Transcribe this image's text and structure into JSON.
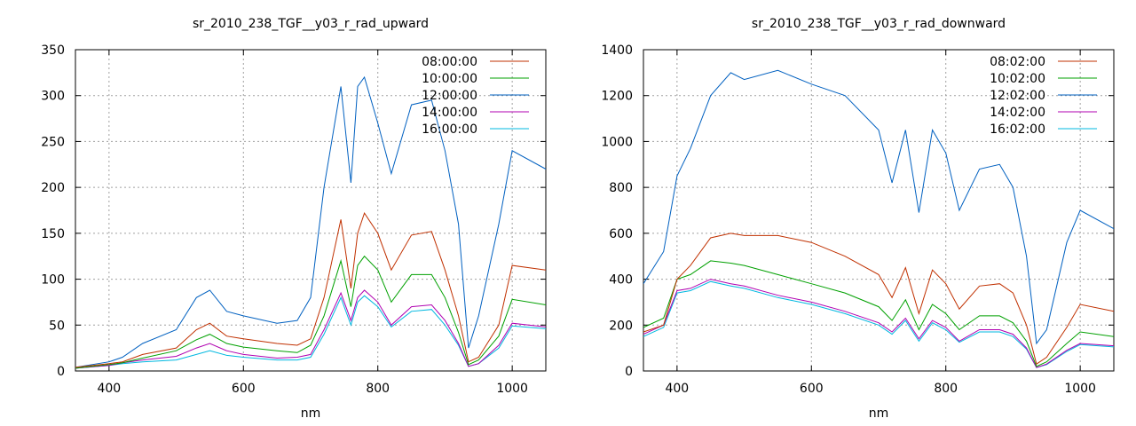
{
  "chart_data": [
    {
      "type": "line",
      "title": "sr_2010_238_TGF__y03_r_rad_upward",
      "xlabel": "nm",
      "ylabel": "",
      "xlim": [
        350,
        1050
      ],
      "ylim": [
        0,
        350
      ],
      "xticks": [
        400,
        600,
        800,
        1000
      ],
      "yticks": [
        0,
        50,
        100,
        150,
        200,
        250,
        300,
        350
      ],
      "grid": true,
      "legend_position": "top-right",
      "x": [
        350,
        400,
        420,
        450,
        500,
        530,
        550,
        575,
        600,
        650,
        680,
        700,
        720,
        745,
        760,
        770,
        780,
        800,
        820,
        850,
        880,
        900,
        920,
        935,
        950,
        980,
        1000,
        1050
      ],
      "series": [
        {
          "name": "08:00:00",
          "color": "#c03000",
          "values": [
            4,
            8,
            10,
            18,
            25,
            45,
            52,
            38,
            35,
            30,
            28,
            35,
            80,
            165,
            90,
            150,
            172,
            150,
            110,
            148,
            152,
            110,
            60,
            10,
            15,
            50,
            115,
            110
          ]
        },
        {
          "name": "10:00:00",
          "color": "#00a000",
          "values": [
            3,
            7,
            9,
            14,
            22,
            34,
            40,
            30,
            26,
            22,
            20,
            28,
            60,
            120,
            70,
            115,
            125,
            110,
            75,
            105,
            105,
            80,
            42,
            7,
            12,
            38,
            78,
            72
          ]
        },
        {
          "name": "12:00:00",
          "color": "#0060c0",
          "values": [
            4,
            10,
            15,
            30,
            45,
            80,
            88,
            65,
            60,
            52,
            55,
            80,
            200,
            310,
            205,
            310,
            320,
            270,
            215,
            290,
            295,
            240,
            160,
            25,
            60,
            160,
            240,
            220
          ]
        },
        {
          "name": "14:00:00",
          "color": "#b000b0",
          "values": [
            3,
            6,
            9,
            12,
            16,
            25,
            30,
            22,
            18,
            14,
            15,
            18,
            45,
            85,
            55,
            80,
            88,
            75,
            50,
            70,
            72,
            55,
            30,
            5,
            8,
            28,
            52,
            48
          ]
        },
        {
          "name": "16:00:00",
          "color": "#00b8e0",
          "values": [
            3,
            6,
            8,
            10,
            12,
            18,
            22,
            17,
            15,
            12,
            12,
            15,
            40,
            80,
            50,
            75,
            82,
            70,
            48,
            65,
            67,
            50,
            28,
            5,
            8,
            25,
            49,
            46
          ]
        }
      ]
    },
    {
      "type": "line",
      "title": "sr_2010_238_TGF__y03_r_rad_downward",
      "xlabel": "nm",
      "ylabel": "",
      "xlim": [
        350,
        1050
      ],
      "ylim": [
        0,
        1400
      ],
      "xticks": [
        400,
        600,
        800,
        1000
      ],
      "yticks": [
        0,
        200,
        400,
        600,
        800,
        1000,
        1200,
        1400
      ],
      "grid": true,
      "legend_position": "top-right",
      "x": [
        350,
        380,
        400,
        420,
        450,
        480,
        500,
        550,
        600,
        650,
        700,
        720,
        740,
        760,
        780,
        800,
        820,
        850,
        880,
        900,
        920,
        935,
        950,
        980,
        1000,
        1050
      ],
      "series": [
        {
          "name": "08:02:00",
          "color": "#c03000",
          "values": [
            170,
            200,
            400,
            460,
            580,
            600,
            590,
            590,
            560,
            500,
            420,
            320,
            450,
            250,
            440,
            380,
            270,
            370,
            380,
            340,
            200,
            30,
            60,
            190,
            290,
            260
          ]
        },
        {
          "name": "10:02:00",
          "color": "#00a000",
          "values": [
            190,
            230,
            400,
            420,
            480,
            470,
            460,
            420,
            380,
            340,
            280,
            220,
            310,
            180,
            290,
            250,
            180,
            240,
            240,
            210,
            130,
            20,
            40,
            120,
            170,
            150
          ]
        },
        {
          "name": "12:02:00",
          "color": "#0060c0",
          "values": [
            380,
            520,
            850,
            970,
            1200,
            1300,
            1270,
            1310,
            1250,
            1200,
            1050,
            820,
            1050,
            690,
            1050,
            950,
            700,
            880,
            900,
            800,
            500,
            120,
            180,
            560,
            700,
            620
          ]
        },
        {
          "name": "14:02:00",
          "color": "#b000b0",
          "values": [
            160,
            200,
            350,
            360,
            400,
            380,
            370,
            330,
            300,
            260,
            210,
            170,
            230,
            140,
            220,
            190,
            130,
            180,
            180,
            160,
            100,
            15,
            30,
            90,
            120,
            110
          ]
        },
        {
          "name": "16:02:00",
          "color": "#00b8e0",
          "values": [
            150,
            190,
            340,
            350,
            390,
            370,
            360,
            320,
            290,
            250,
            200,
            160,
            220,
            130,
            210,
            180,
            125,
            170,
            170,
            150,
            95,
            15,
            28,
            85,
            115,
            105
          ]
        }
      ]
    }
  ]
}
